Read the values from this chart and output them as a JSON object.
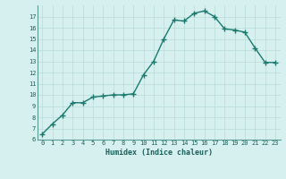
{
  "x": [
    0,
    1,
    2,
    3,
    4,
    5,
    6,
    7,
    8,
    9,
    10,
    11,
    12,
    13,
    14,
    15,
    16,
    17,
    18,
    19,
    20,
    21,
    22,
    23
  ],
  "y": [
    6.5,
    7.4,
    8.2,
    9.3,
    9.3,
    9.8,
    9.9,
    10.0,
    10.0,
    10.1,
    11.8,
    13.0,
    15.0,
    16.7,
    16.6,
    17.3,
    17.5,
    17.0,
    15.9,
    15.8,
    15.6,
    14.2,
    12.9,
    12.9
  ],
  "xlim": [
    -0.5,
    23.5
  ],
  "ylim": [
    6,
    18
  ],
  "yticks": [
    6,
    7,
    8,
    9,
    10,
    11,
    12,
    13,
    14,
    15,
    16,
    17
  ],
  "xticks": [
    0,
    1,
    2,
    3,
    4,
    5,
    6,
    7,
    8,
    9,
    10,
    11,
    12,
    13,
    14,
    15,
    16,
    17,
    18,
    19,
    20,
    21,
    22,
    23
  ],
  "xlabel": "Humidex (Indice chaleur)",
  "line_color": "#1a7a6e",
  "marker_color": "#1a7a6e",
  "bg_color": "#d6f0ef",
  "grid_color": "#b8dbd8",
  "tick_label_color": "#1a5f5a",
  "axis_color": "#5a9a94",
  "font_family": "monospace",
  "xlabel_fontsize": 6.0,
  "tick_fontsize": 5.0,
  "linewidth": 1.0,
  "markersize": 4.0
}
